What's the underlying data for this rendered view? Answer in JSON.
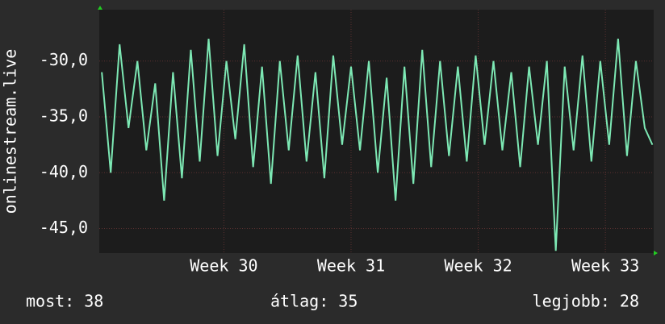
{
  "chart_data": {
    "type": "line",
    "y_label": "onlinestream.live",
    "x": [
      29.04,
      29.11,
      29.18,
      29.25,
      29.32,
      29.39,
      29.46,
      29.53,
      29.6,
      29.67,
      29.74,
      29.81,
      29.88,
      29.95,
      30.02,
      30.09,
      30.16,
      30.23,
      30.3,
      30.37,
      30.44,
      30.51,
      30.58,
      30.65,
      30.72,
      30.79,
      30.86,
      30.93,
      31.0,
      31.07,
      31.14,
      31.21,
      31.28,
      31.35,
      31.42,
      31.49,
      31.56,
      31.63,
      31.7,
      31.77,
      31.84,
      31.91,
      31.98,
      32.05,
      32.12,
      32.19,
      32.26,
      32.33,
      32.4,
      32.47,
      32.54,
      32.61,
      32.68,
      32.75,
      32.82,
      32.89,
      32.96,
      33.03,
      33.1,
      33.17,
      33.24,
      33.31,
      33.37
    ],
    "series": [
      {
        "color": "#7de8b4",
        "values": [
          -31,
          -40,
          -28.5,
          -36,
          -30,
          -38,
          -32,
          -42.5,
          -31,
          -40.5,
          -29,
          -39,
          -28,
          -38.5,
          -30,
          -37,
          -28.5,
          -39.5,
          -30.5,
          -41,
          -30,
          -38,
          -29.5,
          -39,
          -31,
          -40.5,
          -29.5,
          -37.5,
          -30.5,
          -38,
          -30,
          -40,
          -31.5,
          -42.5,
          -30.5,
          -41,
          -29,
          -39.5,
          -30,
          -38.5,
          -30.5,
          -39,
          -29.5,
          -37.5,
          -30,
          -38,
          -31,
          -39.5,
          -30.5,
          -37.5,
          -30,
          -47,
          -30.5,
          -38,
          -29.5,
          -39,
          -30,
          -37.5,
          -28,
          -38.5,
          -30,
          -36,
          -37.5
        ]
      }
    ],
    "xlim": [
      29.02,
      33.38
    ],
    "ylim": [
      -47.2,
      -25.4
    ],
    "xticks": [
      {
        "value": 30,
        "label": "Week 30"
      },
      {
        "value": 31,
        "label": "Week 31"
      },
      {
        "value": 32,
        "label": "Week 32"
      },
      {
        "value": 33,
        "label": "Week 33"
      }
    ],
    "yticks": [
      {
        "value": -30,
        "label": "-30,0"
      },
      {
        "value": -35,
        "label": "-35,0"
      },
      {
        "value": -40,
        "label": "-40,0"
      },
      {
        "value": -45,
        "label": "-45,0"
      }
    ],
    "grid": true,
    "footer": [
      "most: 38",
      "átlag: 35",
      "legjobb: 28"
    ]
  }
}
